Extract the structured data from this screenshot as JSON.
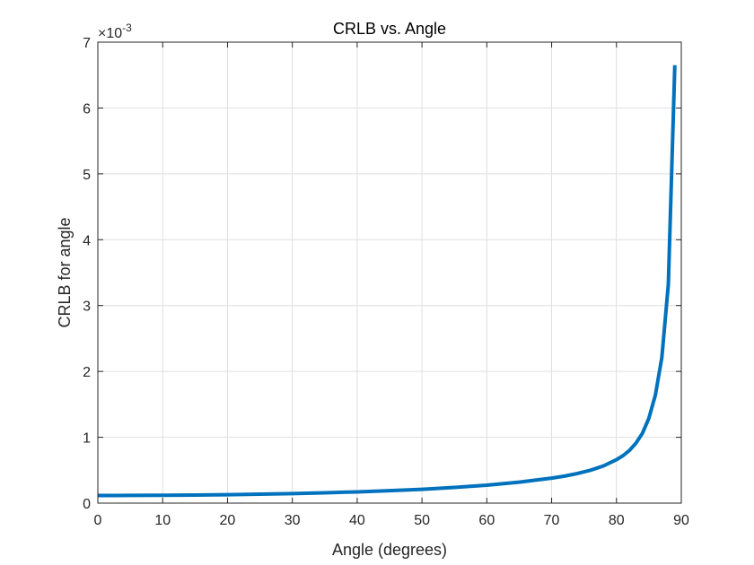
{
  "chart_data": {
    "type": "line",
    "title": "CRLB vs. Angle",
    "xlabel": "Angle (degrees)",
    "ylabel": "CRLB for angle",
    "y_multiplier": "×10",
    "y_exponent": "-3",
    "xlim": [
      0,
      90
    ],
    "ylim": [
      0,
      7
    ],
    "xticks": [
      "0",
      "10",
      "20",
      "30",
      "40",
      "50",
      "60",
      "70",
      "80",
      "90"
    ],
    "yticks": [
      "0",
      "1",
      "2",
      "3",
      "4",
      "5",
      "6",
      "7"
    ],
    "grid": true,
    "line_color": "#0072BD",
    "series": [
      {
        "x": [
          0,
          5,
          10,
          15,
          20,
          25,
          30,
          35,
          40,
          45,
          50,
          55,
          60,
          65,
          70,
          72,
          74,
          76,
          78,
          80,
          81,
          82,
          83,
          84,
          85,
          86,
          87,
          88,
          89
        ],
        "values": [
          0.116,
          0.117,
          0.119,
          0.123,
          0.128,
          0.136,
          0.145,
          0.157,
          0.171,
          0.189,
          0.21,
          0.238,
          0.272,
          0.318,
          0.38,
          0.41,
          0.45,
          0.5,
          0.565,
          0.66,
          0.72,
          0.8,
          0.91,
          1.06,
          1.29,
          1.64,
          2.21,
          3.32,
          6.65
        ]
      }
    ]
  }
}
